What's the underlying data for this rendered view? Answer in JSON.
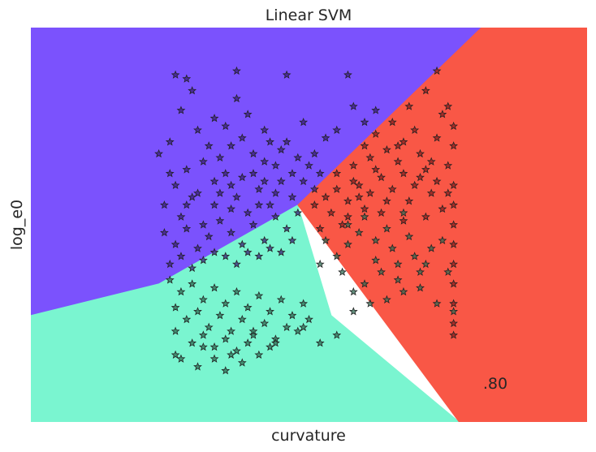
{
  "chart_data": {
    "type": "scatter",
    "title": "Linear SVM",
    "xlabel": "curvature",
    "ylabel": "log_e0",
    "xticks_shown": false,
    "yticks_shown": false,
    "grid": false,
    "xlim": [
      0,
      1
    ],
    "ylim": [
      0,
      1
    ],
    "annotation": ".80",
    "marker": "star",
    "region_colors": {
      "purple": "#7b52fd",
      "teal": "#7af5d0",
      "red": "#f95746"
    },
    "point_colors": {
      "purple": "#3a1f78",
      "teal": "#2f6a52",
      "red": "#8a1e1e"
    },
    "regions": [
      {
        "class": "purple",
        "boundary": [
          [
            0.0,
            0.27
          ],
          [
            0.23,
            0.35
          ],
          [
            0.48,
            0.55
          ],
          [
            0.81,
            1.0
          ]
        ]
      },
      {
        "class": "teal",
        "boundary": [
          [
            0.48,
            0.55
          ],
          [
            0.54,
            0.27
          ],
          [
            0.77,
            0.0
          ]
        ]
      },
      {
        "class": "red",
        "boundary": [
          [
            0.48,
            0.55
          ],
          [
            0.81,
            1.0
          ],
          [
            1.0,
            1.0
          ],
          [
            1.0,
            0.0
          ],
          [
            0.77,
            0.0
          ]
        ]
      }
    ],
    "series": [
      {
        "class": "purple",
        "points": [
          [
            0.26,
            0.88
          ],
          [
            0.28,
            0.87
          ],
          [
            0.29,
            0.84
          ],
          [
            0.37,
            0.89
          ],
          [
            0.46,
            0.88
          ],
          [
            0.57,
            0.88
          ],
          [
            0.23,
            0.68
          ],
          [
            0.25,
            0.71
          ],
          [
            0.27,
            0.79
          ],
          [
            0.24,
            0.55
          ],
          [
            0.26,
            0.6
          ],
          [
            0.28,
            0.64
          ],
          [
            0.3,
            0.74
          ],
          [
            0.31,
            0.66
          ],
          [
            0.33,
            0.61
          ],
          [
            0.35,
            0.75
          ],
          [
            0.36,
            0.7
          ],
          [
            0.38,
            0.62
          ],
          [
            0.4,
            0.68
          ],
          [
            0.42,
            0.74
          ],
          [
            0.44,
            0.65
          ],
          [
            0.46,
            0.71
          ],
          [
            0.49,
            0.76
          ],
          [
            0.51,
            0.68
          ],
          [
            0.53,
            0.72
          ],
          [
            0.55,
            0.74
          ],
          [
            0.58,
            0.8
          ],
          [
            0.6,
            0.76
          ],
          [
            0.62,
            0.79
          ],
          [
            0.27,
            0.52
          ],
          [
            0.29,
            0.57
          ],
          [
            0.31,
            0.5
          ],
          [
            0.33,
            0.55
          ],
          [
            0.35,
            0.63
          ],
          [
            0.37,
            0.57
          ],
          [
            0.39,
            0.53
          ],
          [
            0.41,
            0.59
          ],
          [
            0.43,
            0.55
          ],
          [
            0.45,
            0.61
          ],
          [
            0.47,
            0.57
          ],
          [
            0.49,
            0.61
          ],
          [
            0.51,
            0.59
          ],
          [
            0.24,
            0.48
          ],
          [
            0.26,
            0.45
          ],
          [
            0.28,
            0.49
          ],
          [
            0.3,
            0.44
          ],
          [
            0.32,
            0.47
          ],
          [
            0.34,
            0.51
          ],
          [
            0.36,
            0.48
          ],
          [
            0.38,
            0.45
          ],
          [
            0.4,
            0.5
          ],
          [
            0.42,
            0.46
          ],
          [
            0.44,
            0.52
          ],
          [
            0.46,
            0.49
          ],
          [
            0.48,
            0.53
          ],
          [
            0.25,
            0.4
          ],
          [
            0.27,
            0.42
          ],
          [
            0.29,
            0.39
          ],
          [
            0.31,
            0.41
          ],
          [
            0.33,
            0.43
          ],
          [
            0.35,
            0.42
          ],
          [
            0.37,
            0.4
          ],
          [
            0.39,
            0.43
          ],
          [
            0.41,
            0.42
          ],
          [
            0.43,
            0.44
          ],
          [
            0.45,
            0.43
          ],
          [
            0.47,
            0.46
          ],
          [
            0.32,
            0.7
          ],
          [
            0.34,
            0.67
          ],
          [
            0.36,
            0.6
          ],
          [
            0.38,
            0.72
          ],
          [
            0.4,
            0.63
          ],
          [
            0.42,
            0.66
          ],
          [
            0.44,
            0.58
          ],
          [
            0.39,
            0.78
          ],
          [
            0.43,
            0.71
          ],
          [
            0.5,
            0.65
          ],
          [
            0.52,
            0.63
          ],
          [
            0.3,
            0.58
          ],
          [
            0.28,
            0.55
          ],
          [
            0.25,
            0.63
          ],
          [
            0.33,
            0.77
          ],
          [
            0.37,
            0.82
          ],
          [
            0.45,
            0.69
          ],
          [
            0.48,
            0.67
          ],
          [
            0.41,
            0.55
          ],
          [
            0.36,
            0.54
          ],
          [
            0.34,
            0.58
          ],
          [
            0.47,
            0.63
          ],
          [
            0.42,
            0.61
          ]
        ]
      },
      {
        "class": "teal",
        "points": [
          [
            0.25,
            0.36
          ],
          [
            0.27,
            0.33
          ],
          [
            0.29,
            0.35
          ],
          [
            0.31,
            0.31
          ],
          [
            0.33,
            0.34
          ],
          [
            0.35,
            0.3
          ],
          [
            0.37,
            0.33
          ],
          [
            0.39,
            0.29
          ],
          [
            0.41,
            0.32
          ],
          [
            0.43,
            0.28
          ],
          [
            0.45,
            0.31
          ],
          [
            0.47,
            0.27
          ],
          [
            0.49,
            0.3
          ],
          [
            0.26,
            0.29
          ],
          [
            0.28,
            0.26
          ],
          [
            0.3,
            0.28
          ],
          [
            0.32,
            0.24
          ],
          [
            0.34,
            0.27
          ],
          [
            0.36,
            0.23
          ],
          [
            0.38,
            0.26
          ],
          [
            0.4,
            0.22
          ],
          [
            0.42,
            0.25
          ],
          [
            0.44,
            0.21
          ],
          [
            0.46,
            0.24
          ],
          [
            0.48,
            0.23
          ],
          [
            0.26,
            0.23
          ],
          [
            0.29,
            0.2
          ],
          [
            0.31,
            0.22
          ],
          [
            0.33,
            0.19
          ],
          [
            0.35,
            0.21
          ],
          [
            0.37,
            0.18
          ],
          [
            0.39,
            0.2
          ],
          [
            0.41,
            0.17
          ],
          [
            0.43,
            0.19
          ],
          [
            0.5,
            0.26
          ],
          [
            0.27,
            0.16
          ],
          [
            0.3,
            0.14
          ],
          [
            0.33,
            0.16
          ],
          [
            0.35,
            0.13
          ],
          [
            0.38,
            0.15
          ],
          [
            0.26,
            0.17
          ],
          [
            0.31,
            0.19
          ],
          [
            0.36,
            0.17
          ],
          [
            0.4,
            0.23
          ],
          [
            0.44,
            0.2
          ],
          [
            0.49,
            0.24
          ],
          [
            0.52,
            0.2
          ],
          [
            0.55,
            0.22
          ],
          [
            0.58,
            0.28
          ],
          [
            0.61,
            0.3
          ],
          [
            0.64,
            0.31
          ],
          [
            0.67,
            0.33
          ],
          [
            0.7,
            0.34
          ],
          [
            0.73,
            0.3
          ],
          [
            0.76,
            0.28
          ],
          [
            0.6,
            0.35
          ],
          [
            0.63,
            0.38
          ],
          [
            0.66,
            0.4
          ],
          [
            0.69,
            0.42
          ],
          [
            0.72,
            0.44
          ],
          [
            0.75,
            0.38
          ],
          [
            0.55,
            0.42
          ],
          [
            0.57,
            0.45
          ],
          [
            0.59,
            0.48
          ],
          [
            0.62,
            0.46
          ],
          [
            0.65,
            0.44
          ],
          [
            0.68,
            0.47
          ],
          [
            0.71,
            0.4
          ],
          [
            0.74,
            0.46
          ],
          [
            0.53,
            0.46
          ],
          [
            0.56,
            0.38
          ],
          [
            0.58,
            0.33
          ],
          [
            0.62,
            0.41
          ],
          [
            0.66,
            0.36
          ],
          [
            0.7,
            0.38
          ],
          [
            0.57,
            0.5
          ],
          [
            0.6,
            0.52
          ],
          [
            0.64,
            0.49
          ],
          [
            0.67,
            0.53
          ],
          [
            0.52,
            0.4
          ]
        ]
      },
      {
        "class": "red",
        "points": [
          [
            0.51,
            0.55
          ],
          [
            0.53,
            0.57
          ],
          [
            0.55,
            0.59
          ],
          [
            0.57,
            0.56
          ],
          [
            0.59,
            0.6
          ],
          [
            0.61,
            0.58
          ],
          [
            0.63,
            0.62
          ],
          [
            0.65,
            0.59
          ],
          [
            0.67,
            0.63
          ],
          [
            0.69,
            0.6
          ],
          [
            0.71,
            0.64
          ],
          [
            0.73,
            0.61
          ],
          [
            0.75,
            0.65
          ],
          [
            0.55,
            0.63
          ],
          [
            0.58,
            0.65
          ],
          [
            0.61,
            0.67
          ],
          [
            0.64,
            0.69
          ],
          [
            0.67,
            0.71
          ],
          [
            0.7,
            0.68
          ],
          [
            0.73,
            0.72
          ],
          [
            0.76,
            0.7
          ],
          [
            0.74,
            0.78
          ],
          [
            0.71,
            0.84
          ],
          [
            0.73,
            0.89
          ],
          [
            0.75,
            0.8
          ],
          [
            0.76,
            0.75
          ],
          [
            0.76,
            0.6
          ],
          [
            0.76,
            0.55
          ],
          [
            0.76,
            0.5
          ],
          [
            0.76,
            0.45
          ],
          [
            0.76,
            0.4
          ],
          [
            0.76,
            0.35
          ],
          [
            0.76,
            0.3
          ],
          [
            0.76,
            0.25
          ],
          [
            0.76,
            0.22
          ],
          [
            0.62,
            0.73
          ],
          [
            0.65,
            0.76
          ],
          [
            0.68,
            0.8
          ],
          [
            0.66,
            0.7
          ],
          [
            0.69,
            0.74
          ],
          [
            0.72,
            0.66
          ],
          [
            0.6,
            0.7
          ],
          [
            0.58,
            0.61
          ],
          [
            0.54,
            0.53
          ],
          [
            0.52,
            0.49
          ],
          [
            0.56,
            0.5
          ],
          [
            0.6,
            0.54
          ],
          [
            0.64,
            0.56
          ],
          [
            0.68,
            0.56
          ],
          [
            0.72,
            0.58
          ],
          [
            0.75,
            0.58
          ],
          [
            0.7,
            0.62
          ],
          [
            0.66,
            0.66
          ],
          [
            0.62,
            0.64
          ],
          [
            0.63,
            0.53
          ],
          [
            0.67,
            0.51
          ],
          [
            0.71,
            0.52
          ],
          [
            0.74,
            0.54
          ],
          [
            0.59,
            0.57
          ],
          [
            0.57,
            0.52
          ]
        ]
      }
    ]
  }
}
